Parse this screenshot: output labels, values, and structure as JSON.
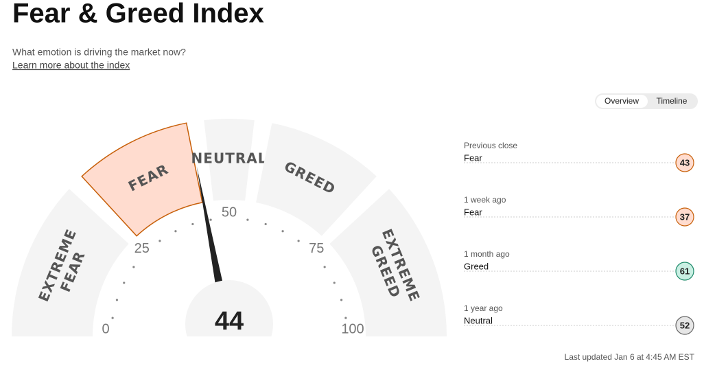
{
  "header": {
    "title": "Fear & Greed Index",
    "subtitle": "What emotion is driving the market now?",
    "link": "Learn more about the index"
  },
  "tabs": [
    "Overview",
    "Timeline"
  ],
  "chart_data": {
    "type": "gauge",
    "value": 44,
    "xlim": [
      0,
      100
    ],
    "xticks": [
      0,
      25,
      50,
      75,
      100
    ],
    "bands": [
      {
        "label": "EXTREME FEAR",
        "range": [
          0,
          25
        ]
      },
      {
        "label": "FEAR",
        "range": [
          25,
          45
        ]
      },
      {
        "label": "NEUTRAL",
        "range": [
          45,
          55
        ]
      },
      {
        "label": "GREED",
        "range": [
          55,
          75
        ]
      },
      {
        "label": "EXTREME GREED",
        "range": [
          75,
          100
        ]
      }
    ],
    "color": "#f4f4f4",
    "highlight_color": "#ffdccf",
    "highlight_stroke": "#c8600a"
  },
  "history": [
    {
      "period": "Previous close",
      "label": "Fear",
      "value": 43,
      "color": "#ffdccf",
      "stroke": "#c8600a"
    },
    {
      "period": "1 week ago",
      "label": "Fear",
      "value": 37,
      "color": "#ffdccf",
      "stroke": "#c8600a"
    },
    {
      "period": "1 month ago",
      "label": "Greed",
      "value": 61,
      "color": "#c9efe3",
      "stroke": "#1e8a6a"
    },
    {
      "period": "1 year ago",
      "label": "Neutral",
      "value": 52,
      "color": "#e6e6e6",
      "stroke": "#666666"
    }
  ],
  "footer": "Last updated Jan 6 at 4:45 AM EST"
}
